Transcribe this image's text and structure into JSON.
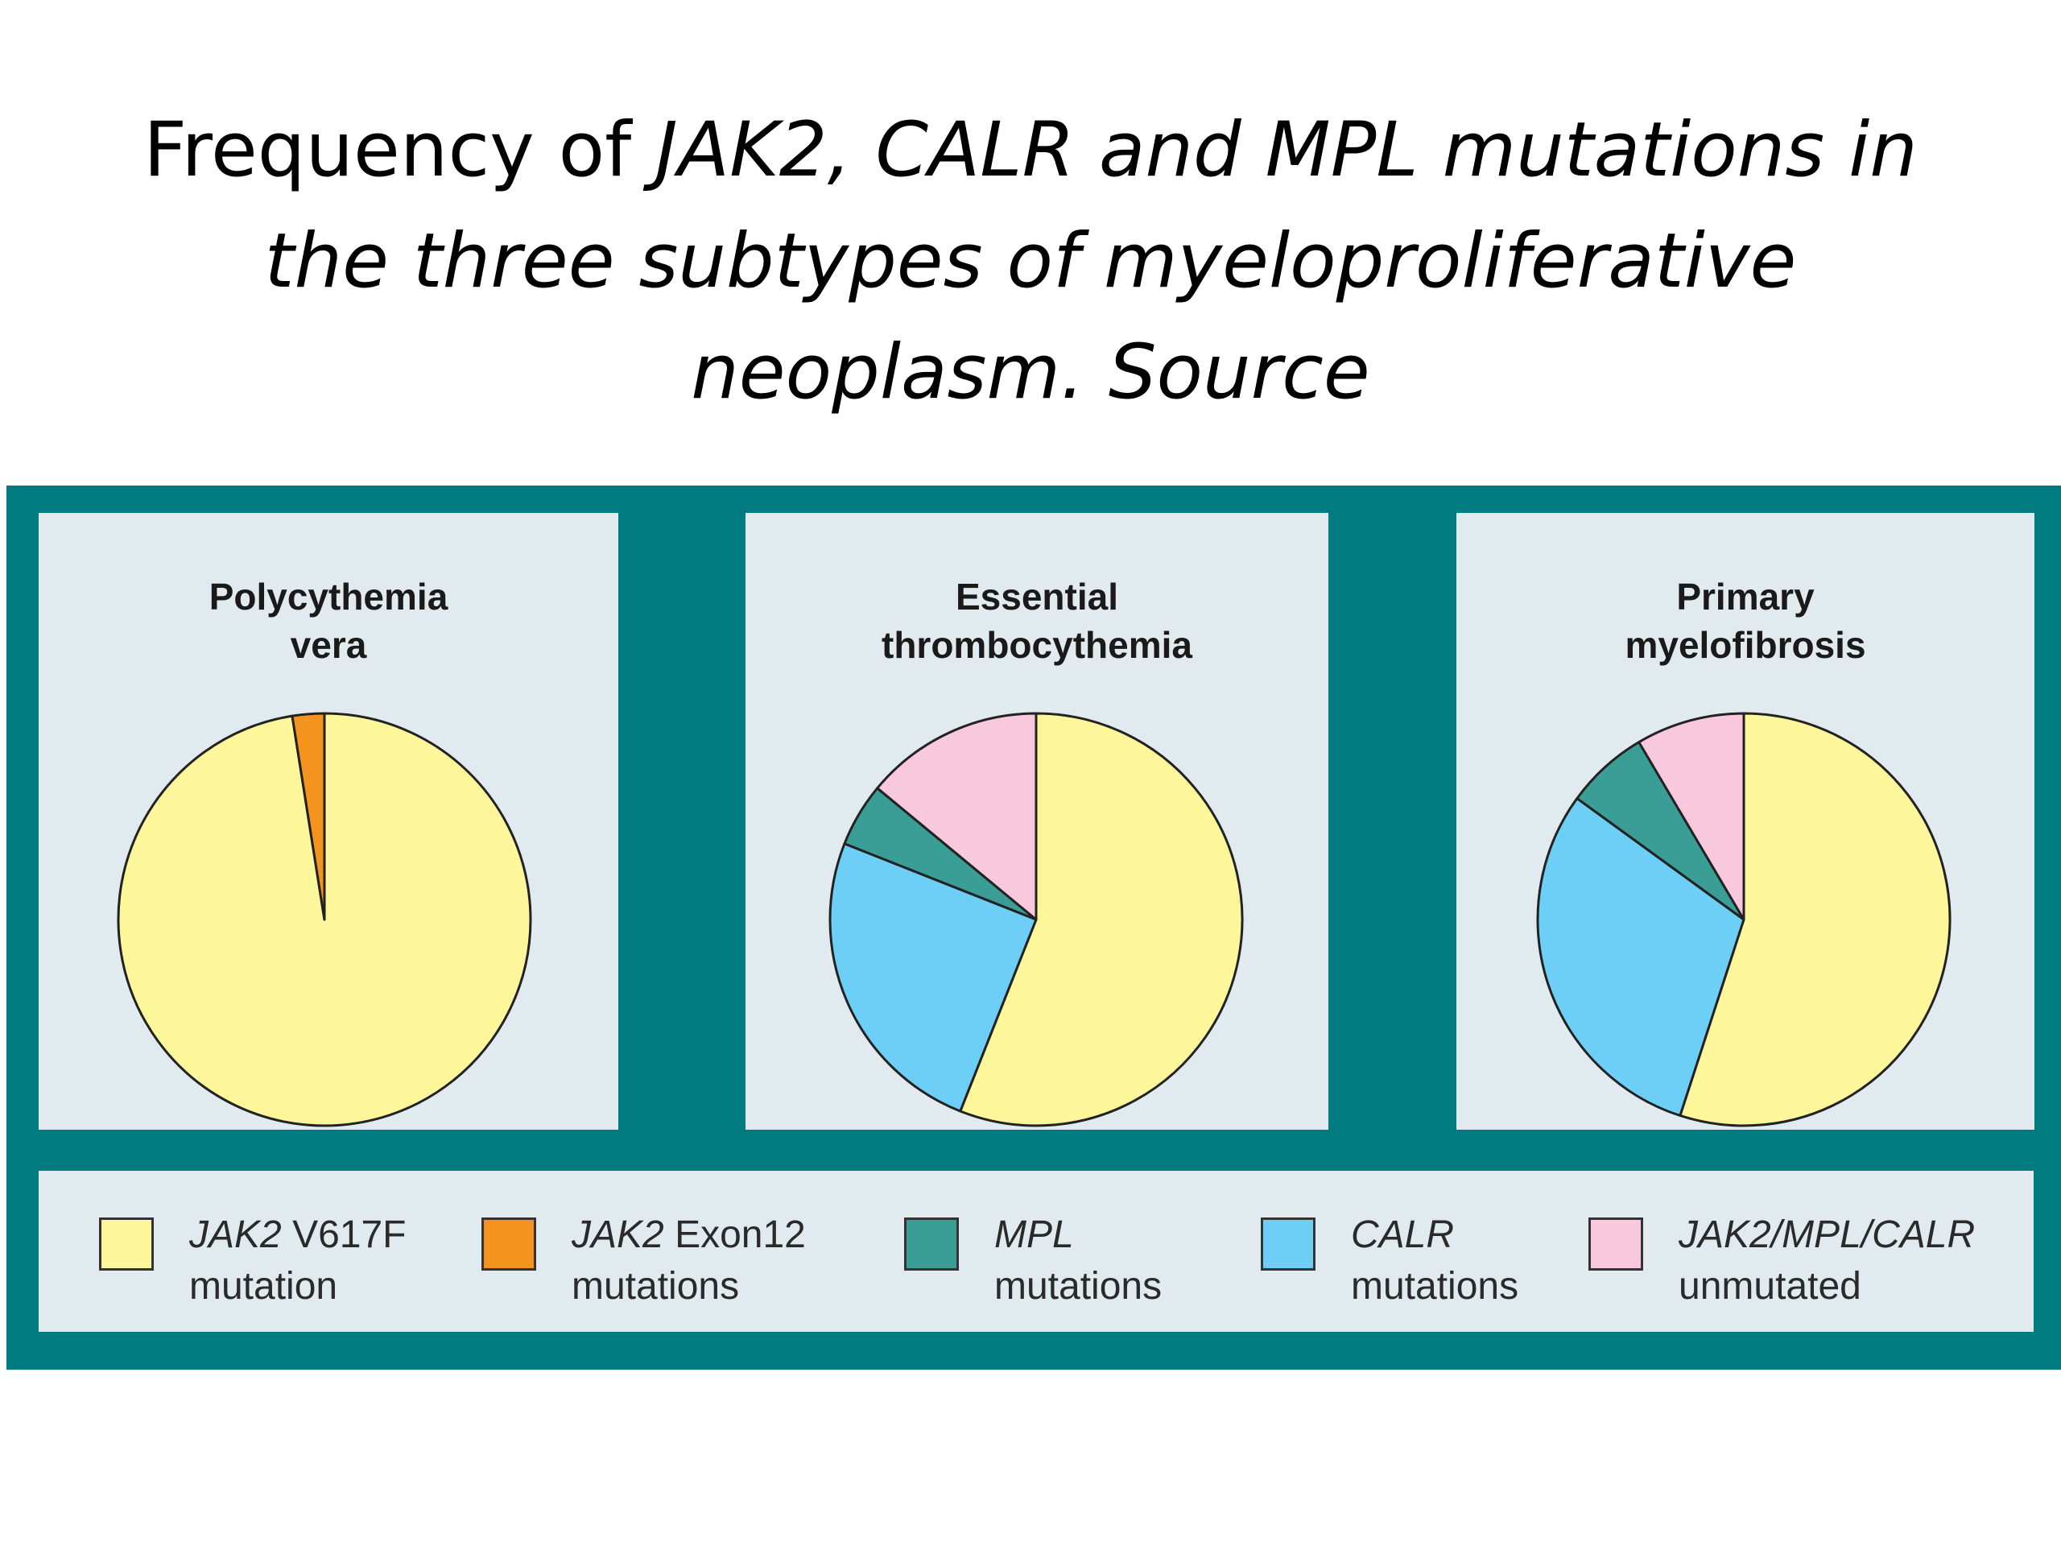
{
  "title": {
    "part_plain": "Frequency of ",
    "part_italic_1": "JAK2, CALR and MPL mutations in",
    "part_italic_2": "the three subtypes of myeloproliferative",
    "part_italic_3": "neoplasm. Source"
  },
  "colors": {
    "frame": "#007b7f",
    "panel": "#e1ebef",
    "jak2_v617f": "#fef69a",
    "jak2_exon12": "#f5931f",
    "mpl": "#3a9d96",
    "calr": "#6dcff6",
    "unmutated": "#f8c9dd",
    "outline": "#222222"
  },
  "legend": [
    {
      "key": "jak2_v617f",
      "italic": "JAK2",
      "rest": " V617F",
      "line2": "mutation"
    },
    {
      "key": "jak2_exon12",
      "italic": "JAK2",
      "rest": " Exon12",
      "line2": "mutations"
    },
    {
      "key": "mpl",
      "italic": "MPL",
      "rest": "",
      "line2": "mutations"
    },
    {
      "key": "calr",
      "italic": "CALR",
      "rest": "",
      "line2": "mutations"
    },
    {
      "key": "unmutated",
      "italic": "JAK2/MPL/CALR",
      "rest": "",
      "line2": "unmutated"
    }
  ],
  "chart_data": [
    {
      "type": "pie",
      "title": "Polycythemia\nvera",
      "slices": [
        {
          "key": "jak2_v617f",
          "label": "JAK2 V617F mutation",
          "value": 97.5
        },
        {
          "key": "jak2_exon12",
          "label": "JAK2 Exon12 mutations",
          "value": 2.5
        }
      ]
    },
    {
      "type": "pie",
      "title": "Essential\nthrombocythemia",
      "slices": [
        {
          "key": "jak2_v617f",
          "label": "JAK2 V617F mutation",
          "value": 56
        },
        {
          "key": "calr",
          "label": "CALR mutations",
          "value": 25
        },
        {
          "key": "mpl",
          "label": "MPL mutations",
          "value": 5
        },
        {
          "key": "unmutated",
          "label": "JAK2/MPL/CALR unmutated",
          "value": 14
        }
      ]
    },
    {
      "type": "pie",
      "title": "Primary\nmyelofibrosis",
      "slices": [
        {
          "key": "jak2_v617f",
          "label": "JAK2 V617F mutation",
          "value": 55
        },
        {
          "key": "calr",
          "label": "CALR mutations",
          "value": 30
        },
        {
          "key": "mpl",
          "label": "MPL mutations",
          "value": 6.5
        },
        {
          "key": "unmutated",
          "label": "JAK2/MPL/CALR unmutated",
          "value": 8.5
        }
      ]
    }
  ]
}
